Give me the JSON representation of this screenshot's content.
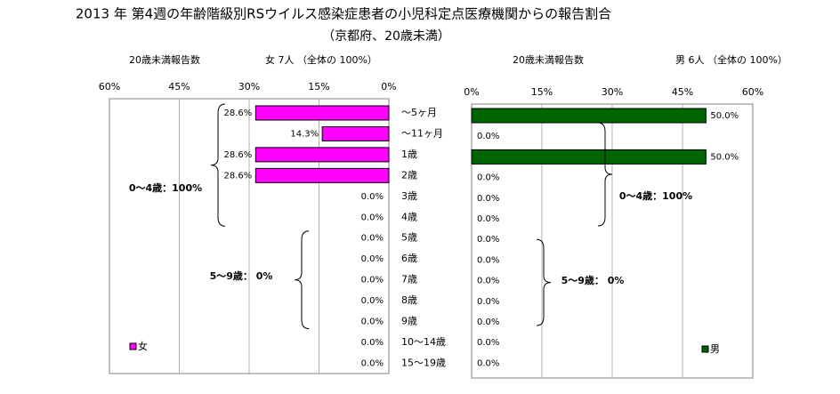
{
  "title": "2013 年 第4週の年齢階級別RSウイルス感染症患者の小児科定点医療機関からの報告割合",
  "subtitle": "（京都府、20歳未満）",
  "colors": {
    "female_bar": "#FF00FF",
    "male_bar": "#006400",
    "grid": "#B0B0B0",
    "frame": "#000000"
  },
  "age_categories": [
    "～5ヶ月",
    "～11ヶ月",
    "1歳",
    "2歳",
    "3歳",
    "4歳",
    "5歳",
    "6歳",
    "7歳",
    "8歳",
    "9歳",
    "10～14歳",
    "15～19歳"
  ],
  "chart_data": [
    {
      "type": "bar",
      "orientation": "horizontal",
      "x_direction": "reversed",
      "header_left": "20歳未満報告数",
      "header_right": "女  7人  （全体の   100%）",
      "categories": [
        "～5ヶ月",
        "～11ヶ月",
        "1歳",
        "2歳",
        "3歳",
        "4歳",
        "5歳",
        "6歳",
        "7歳",
        "8歳",
        "9歳",
        "10～14歳",
        "15～19歳"
      ],
      "series": [
        {
          "name": "女",
          "values": [
            28.6,
            14.3,
            28.6,
            28.6,
            0,
            0,
            0,
            0,
            0,
            0,
            0,
            0,
            0
          ]
        }
      ],
      "value_labels": [
        "28.6%",
        "14.3%",
        "28.6%",
        "28.6%",
        "0.0%",
        "0.0%",
        "0.0%",
        "0.0%",
        "0.0%",
        "0.0%",
        "0.0%",
        "0.0%",
        "0.0%"
      ],
      "xlim": [
        0,
        60
      ],
      "xticks": [
        "0%",
        "15%",
        "30%",
        "45%",
        "60%"
      ],
      "grid": true,
      "legend": "bottom-left",
      "annotations": [
        {
          "text": "0～4歳：100%",
          "from": 0,
          "to": 5
        },
        {
          "text": "5～9歳：  0%",
          "from": 6,
          "to": 10
        }
      ]
    },
    {
      "type": "bar",
      "orientation": "horizontal",
      "header_left": "20歳未満報告数",
      "header_right": "男  6人  （全体の   100%）",
      "categories": [
        "～5ヶ月",
        "～11ヶ月",
        "1歳",
        "2歳",
        "3歳",
        "4歳",
        "5歳",
        "6歳",
        "7歳",
        "8歳",
        "9歳",
        "10～14歳",
        "15～19歳"
      ],
      "series": [
        {
          "name": "男",
          "values": [
            50.0,
            0,
            50.0,
            0,
            0,
            0,
            0,
            0,
            0,
            0,
            0,
            0,
            0
          ]
        }
      ],
      "value_labels": [
        "50.0%",
        "0.0%",
        "50.0%",
        "0.0%",
        "0.0%",
        "0.0%",
        "0.0%",
        "0.0%",
        "0.0%",
        "0.0%",
        "0.0%",
        "0.0%",
        "0.0%"
      ],
      "xlim": [
        0,
        60
      ],
      "xticks": [
        "0%",
        "15%",
        "30%",
        "45%",
        "60%"
      ],
      "grid": true,
      "legend": "bottom-right",
      "annotations": [
        {
          "text": "0～4歳：100%",
          "from": 0,
          "to": 5
        },
        {
          "text": "5～9歳：  0%",
          "from": 6,
          "to": 10
        }
      ]
    }
  ]
}
